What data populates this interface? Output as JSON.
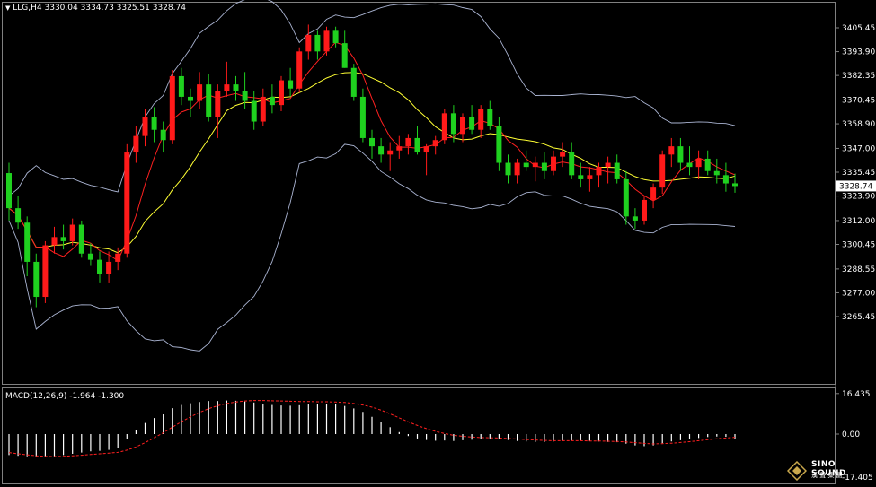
{
  "header": {
    "symbol_tf": "LLG,H4",
    "ohlc": "3330.04 3334.73 3325.51 3328.74"
  },
  "macd": {
    "label": "MACD(12,26,9)",
    "values": "-1.964 -1.300",
    "ticks": [
      "16.435",
      "0.00",
      "-17.405"
    ]
  },
  "price_axis": {
    "ticks": [
      "3405.45",
      "3393.90",
      "3382.35",
      "3370.45",
      "3358.90",
      "3347.00",
      "3335.45",
      "3323.90",
      "3312.00",
      "3300.45",
      "3288.55",
      "3277.00",
      "3265.45"
    ],
    "current": "3328.74"
  },
  "logo": {
    "text": "SINO SOUND",
    "cn": "漢 聲 集 團"
  },
  "colors": {
    "up": "#ff1a1a",
    "down": "#1fd11f",
    "ma_fast": "#ff2020",
    "ma_slow": "#ffff33",
    "bands": "#aab4d2",
    "macd_hist": "#ffffff",
    "macd_signal": "#ff2020"
  },
  "chart_data": {
    "type": "candlestick",
    "title": "LLG,H4",
    "ylim": [
      3265.45,
      3411.0
    ],
    "candles": [
      [
        3335,
        3340,
        3312,
        3318
      ],
      [
        3318,
        3324,
        3308,
        3311
      ],
      [
        3311,
        3314,
        3285,
        3292
      ],
      [
        3292,
        3296,
        3270,
        3275
      ],
      [
        3275,
        3302,
        3272,
        3300
      ],
      [
        3300,
        3309,
        3296,
        3304
      ],
      [
        3304,
        3310,
        3298,
        3302
      ],
      [
        3302,
        3313,
        3300,
        3310
      ],
      [
        3310,
        3312,
        3294,
        3296
      ],
      [
        3296,
        3301,
        3290,
        3293
      ],
      [
        3293,
        3297,
        3282,
        3286
      ],
      [
        3286,
        3297,
        3282,
        3292
      ],
      [
        3292,
        3299,
        3288,
        3296
      ],
      [
        3296,
        3349,
        3294,
        3345
      ],
      [
        3345,
        3358,
        3340,
        3353
      ],
      [
        3353,
        3366,
        3348,
        3362
      ],
      [
        3362,
        3367,
        3350,
        3356
      ],
      [
        3356,
        3360,
        3345,
        3351
      ],
      [
        3351,
        3385,
        3349,
        3382
      ],
      [
        3382,
        3386,
        3368,
        3372
      ],
      [
        3372,
        3376,
        3362,
        3370
      ],
      [
        3370,
        3384,
        3366,
        3378
      ],
      [
        3378,
        3383,
        3360,
        3362
      ],
      [
        3362,
        3378,
        3352,
        3375
      ],
      [
        3375,
        3389,
        3372,
        3378
      ],
      [
        3378,
        3382,
        3370,
        3375
      ],
      [
        3375,
        3384,
        3366,
        3370
      ],
      [
        3370,
        3375,
        3356,
        3360
      ],
      [
        3360,
        3376,
        3358,
        3372
      ],
      [
        3372,
        3378,
        3364,
        3368
      ],
      [
        3368,
        3382,
        3365,
        3380
      ],
      [
        3380,
        3386,
        3372,
        3376
      ],
      [
        3376,
        3396,
        3374,
        3394
      ],
      [
        3394,
        3407,
        3390,
        3402
      ],
      [
        3402,
        3404,
        3390,
        3394
      ],
      [
        3394,
        3406,
        3392,
        3404
      ],
      [
        3404,
        3406,
        3396,
        3398
      ],
      [
        3398,
        3404,
        3386,
        3386
      ],
      [
        3386,
        3388,
        3370,
        3372
      ],
      [
        3372,
        3376,
        3350,
        3352
      ],
      [
        3352,
        3356,
        3342,
        3348
      ],
      [
        3348,
        3352,
        3340,
        3344
      ],
      [
        3344,
        3350,
        3336,
        3346
      ],
      [
        3346,
        3353,
        3342,
        3348
      ],
      [
        3348,
        3354,
        3344,
        3352
      ],
      [
        3352,
        3358,
        3344,
        3345
      ],
      [
        3345,
        3349,
        3334,
        3348
      ],
      [
        3348,
        3353,
        3344,
        3351
      ],
      [
        3351,
        3366,
        3349,
        3364
      ],
      [
        3364,
        3368,
        3350,
        3354
      ],
      [
        3354,
        3364,
        3350,
        3362
      ],
      [
        3362,
        3368,
        3354,
        3356
      ],
      [
        3356,
        3368,
        3352,
        3366
      ],
      [
        3366,
        3370,
        3356,
        3358
      ],
      [
        3358,
        3362,
        3336,
        3340
      ],
      [
        3340,
        3344,
        3330,
        3334
      ],
      [
        3334,
        3342,
        3330,
        3340
      ],
      [
        3340,
        3346,
        3336,
        3338
      ],
      [
        3338,
        3343,
        3331,
        3340
      ],
      [
        3340,
        3345,
        3332,
        3336
      ],
      [
        3336,
        3346,
        3334,
        3343
      ],
      [
        3343,
        3350,
        3338,
        3345
      ],
      [
        3345,
        3350,
        3332,
        3334
      ],
      [
        3334,
        3340,
        3328,
        3332
      ],
      [
        3332,
        3338,
        3326,
        3334
      ],
      [
        3334,
        3340,
        3328,
        3338
      ],
      [
        3338,
        3343,
        3330,
        3340
      ],
      [
        3340,
        3344,
        3330,
        3332
      ],
      [
        3332,
        3336,
        3310,
        3314
      ],
      [
        3314,
        3318,
        3308,
        3312
      ],
      [
        3312,
        3324,
        3310,
        3322
      ],
      [
        3322,
        3330,
        3318,
        3328
      ],
      [
        3328,
        3346,
        3325,
        3344
      ],
      [
        3344,
        3352,
        3338,
        3348
      ],
      [
        3348,
        3352,
        3336,
        3340
      ],
      [
        3340,
        3348,
        3334,
        3338
      ],
      [
        3338,
        3346,
        3332,
        3342
      ],
      [
        3342,
        3346,
        3334,
        3336
      ],
      [
        3336,
        3342,
        3330,
        3334
      ],
      [
        3334,
        3340,
        3326,
        3330
      ],
      [
        3330.04,
        3334.73,
        3325.51,
        3328.74
      ]
    ],
    "macd_hist": [
      -8.5,
      -8.8,
      -9.0,
      -9.4,
      -9.2,
      -8.9,
      -8.5,
      -8.0,
      -7.5,
      -7.0,
      -6.8,
      -6.4,
      -5.8,
      -2.0,
      1.5,
      4.5,
      6.5,
      8.0,
      10.5,
      11.8,
      12.5,
      13.0,
      13.4,
      13.4,
      13.6,
      13.5,
      13.2,
      12.8,
      12.2,
      11.8,
      11.6,
      11.5,
      11.7,
      12.0,
      12.1,
      12.3,
      12.1,
      11.4,
      10.4,
      9.0,
      7.0,
      4.8,
      2.8,
      0.8,
      -0.8,
      -1.8,
      -2.4,
      -2.7,
      -2.6,
      -2.8,
      -2.5,
      -2.3,
      -2.0,
      -1.8,
      -2.0,
      -2.4,
      -2.8,
      -3.0,
      -3.2,
      -3.2,
      -3.0,
      -2.8,
      -2.6,
      -2.7,
      -2.9,
      -3.0,
      -3.2,
      -3.3,
      -3.9,
      -4.6,
      -4.9,
      -4.6,
      -3.7,
      -3.0,
      -2.5,
      -2.0,
      -1.6,
      -1.2,
      -1.0,
      -1.1,
      -1.96
    ],
    "macd_signal": [
      -7.5,
      -8.0,
      -8.4,
      -8.8,
      -9.0,
      -9.1,
      -9.0,
      -8.8,
      -8.6,
      -8.3,
      -8.0,
      -7.7,
      -7.4,
      -6.5,
      -5.2,
      -3.5,
      -1.5,
      0.5,
      2.8,
      5.0,
      7.0,
      8.8,
      10.3,
      11.5,
      12.4,
      13.0,
      13.4,
      13.6,
      13.6,
      13.5,
      13.4,
      13.3,
      13.2,
      13.2,
      13.1,
      13.1,
      13.0,
      12.8,
      12.4,
      11.8,
      10.9,
      9.7,
      8.2,
      6.6,
      5.0,
      3.5,
      2.2,
      1.1,
      0.2,
      -0.5,
      -0.9,
      -1.2,
      -1.4,
      -1.5,
      -1.6,
      -1.8,
      -2.0,
      -2.2,
      -2.4,
      -2.6,
      -2.7,
      -2.7,
      -2.7,
      -2.7,
      -2.8,
      -2.8,
      -2.9,
      -3.0,
      -3.2,
      -3.5,
      -3.8,
      -4.0,
      -3.9,
      -3.7,
      -3.4,
      -3.1,
      -2.7,
      -2.3,
      -1.9,
      -1.6,
      -1.3
    ]
  }
}
